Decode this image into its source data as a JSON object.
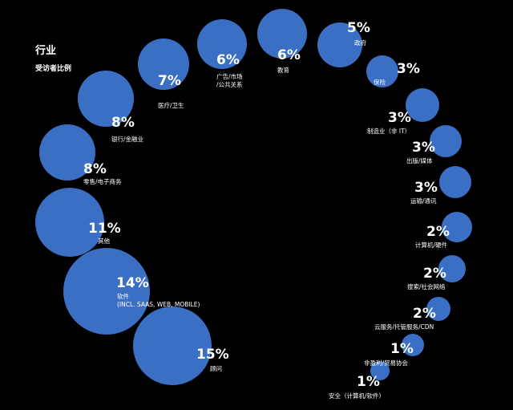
{
  "title": "行业",
  "subtitle": "受访者比例",
  "chart_data": {
    "type": "bubble",
    "title": "行业",
    "subtitle": "受访者比例",
    "unit": "%",
    "bubble_color": "#3a6fc4",
    "background_color": "#000000",
    "label_color": "#ffffff",
    "categories": [
      "广告/市场/公共关系",
      "教育",
      "政府",
      "保险",
      "制造业（非 IT）",
      "出版/媒体",
      "运输/通讯",
      "计算机/硬件",
      "搜索/社会网络",
      "云服务/托管服务/CDN",
      "非盈利/贸易协会",
      "安全（计算机/软件）",
      "顾问",
      "软件 (INCL. SAAS, WEB, MOBILE)",
      "其他",
      "零售/电子商务",
      "银行/金融业",
      "医疗/卫生"
    ],
    "values": [
      6,
      6,
      5,
      3,
      3,
      3,
      3,
      2,
      2,
      2,
      1,
      1,
      15,
      14,
      11,
      8,
      8,
      7
    ],
    "value_labels": [
      "6%",
      "6%",
      "5%",
      "3%",
      "3%",
      "3%",
      "3%",
      "2%",
      "2%",
      "2%",
      "1%",
      "1%",
      "15%",
      "14%",
      "11%",
      "8%",
      "8%",
      "7%"
    ]
  }
}
